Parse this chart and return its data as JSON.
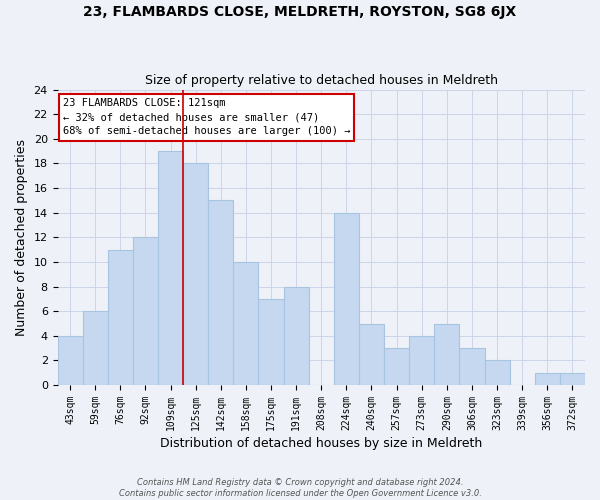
{
  "title": "23, FLAMBARDS CLOSE, MELDRETH, ROYSTON, SG8 6JX",
  "subtitle": "Size of property relative to detached houses in Meldreth",
  "xlabel": "Distribution of detached houses by size in Meldreth",
  "ylabel": "Number of detached properties",
  "footer_lines": [
    "Contains HM Land Registry data © Crown copyright and database right 2024.",
    "Contains public sector information licensed under the Open Government Licence v3.0."
  ],
  "bin_labels": [
    "43sqm",
    "59sqm",
    "76sqm",
    "92sqm",
    "109sqm",
    "125sqm",
    "142sqm",
    "158sqm",
    "175sqm",
    "191sqm",
    "208sqm",
    "224sqm",
    "240sqm",
    "257sqm",
    "273sqm",
    "290sqm",
    "306sqm",
    "323sqm",
    "339sqm",
    "356sqm",
    "372sqm"
  ],
  "bar_heights": [
    4,
    6,
    11,
    12,
    19,
    18,
    15,
    10,
    7,
    8,
    0,
    14,
    5,
    3,
    4,
    5,
    3,
    2,
    0,
    1,
    1
  ],
  "bar_color": "#c5d8f0",
  "bar_edge_color": "#a8c4e0",
  "highlight_line_color": "#cc0000",
  "ylim": [
    0,
    24
  ],
  "yticks": [
    0,
    2,
    4,
    6,
    8,
    10,
    12,
    14,
    16,
    18,
    20,
    22,
    24
  ],
  "annotation_lines": [
    "23 FLAMBARDS CLOSE: 121sqm",
    "← 32% of detached houses are smaller (47)",
    "68% of semi-detached houses are larger (100) →"
  ],
  "grid_color": "#ccd6e8",
  "background_color": "#eef2f8"
}
